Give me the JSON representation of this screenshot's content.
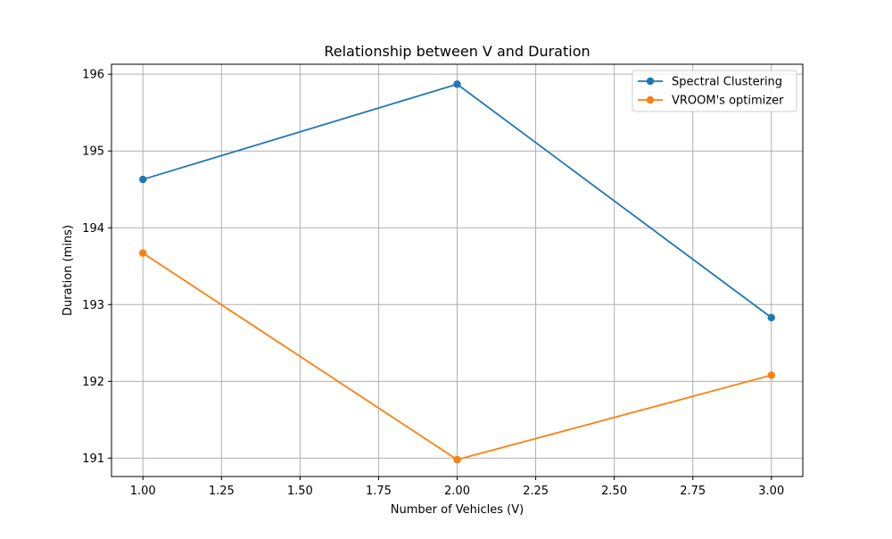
{
  "chart_data": {
    "type": "line",
    "title": "Relationship between V and Duration",
    "xlabel": "Number of Vehicles (V)",
    "ylabel": "Duration (mins)",
    "x": [
      1,
      2,
      3
    ],
    "xlim": [
      0.9,
      3.1
    ],
    "ylim": [
      190.76,
      196.13
    ],
    "xticks": [
      1.0,
      1.25,
      1.5,
      1.75,
      2.0,
      2.25,
      2.5,
      2.75,
      3.0
    ],
    "xtick_labels": [
      "1.00",
      "1.25",
      "1.50",
      "1.75",
      "2.00",
      "2.25",
      "2.50",
      "2.75",
      "3.00"
    ],
    "yticks": [
      191,
      192,
      193,
      194,
      195,
      196
    ],
    "ytick_labels": [
      "191",
      "192",
      "193",
      "194",
      "195",
      "196"
    ],
    "grid": true,
    "legend_position": "upper right",
    "series": [
      {
        "name": "Spectral Clustering",
        "color": "#1f77b4",
        "marker": "circle",
        "values": [
          194.63,
          195.87,
          192.83
        ]
      },
      {
        "name": "VROOM's optimizer",
        "color": "#ff7f0e",
        "marker": "circle",
        "values": [
          193.67,
          190.98,
          192.08
        ]
      }
    ]
  }
}
